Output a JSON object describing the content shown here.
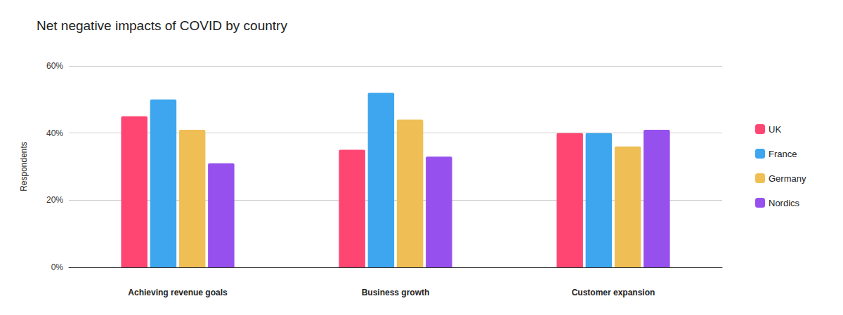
{
  "chart_data": {
    "type": "bar",
    "title": "Net negative impacts of COVID by country",
    "y_label": "Respondents",
    "categories": [
      "Achieving revenue goals",
      "Business growth",
      "Customer expansion"
    ],
    "series": [
      {
        "name": "UK",
        "color": "#ff4673",
        "values": [
          45,
          35,
          40
        ]
      },
      {
        "name": "France",
        "color": "#3ea6ee",
        "values": [
          50,
          52,
          40
        ]
      },
      {
        "name": "Germany",
        "color": "#efbf55",
        "values": [
          41,
          44,
          36
        ]
      },
      {
        "name": "Nordics",
        "color": "#9650ee",
        "values": [
          31,
          33,
          41
        ]
      }
    ],
    "ylim": [
      0,
      60
    ],
    "yticks": [
      {
        "value": 0,
        "label": "0%"
      },
      {
        "value": 20,
        "label": "20%"
      },
      {
        "value": 40,
        "label": "40%"
      },
      {
        "value": 60,
        "label": "60%"
      }
    ],
    "grid": true,
    "legend": "right"
  }
}
